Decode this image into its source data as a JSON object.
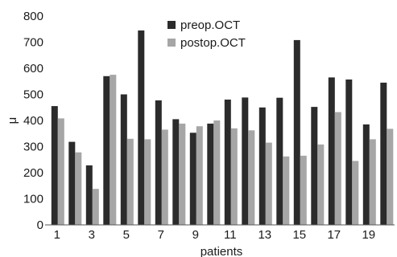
{
  "chart_data": {
    "type": "bar",
    "categories": [
      "1",
      "2",
      "3",
      "4",
      "5",
      "6",
      "7",
      "8",
      "9",
      "10",
      "11",
      "12",
      "13",
      "14",
      "15",
      "16",
      "17",
      "18",
      "19",
      "20"
    ],
    "x_tick_labels": [
      "1",
      "3",
      "5",
      "7",
      "9",
      "11",
      "13",
      "15",
      "17",
      "19"
    ],
    "y_tick_labels": [
      "0",
      "100",
      "200",
      "300",
      "400",
      "500",
      "600",
      "700",
      "800"
    ],
    "series": [
      {
        "name": "preop.OCT",
        "color": "#2b2b2b",
        "values": [
          455,
          318,
          228,
          570,
          500,
          745,
          477,
          405,
          353,
          388,
          480,
          488,
          450,
          487,
          708,
          452,
          565,
          557,
          385,
          545
        ]
      },
      {
        "name": "postop.OCT",
        "color": "#a6a6a6",
        "values": [
          408,
          278,
          138,
          575,
          330,
          328,
          365,
          388,
          378,
          400,
          370,
          362,
          315,
          262,
          265,
          308,
          432,
          245,
          328,
          368
        ]
      }
    ],
    "xlabel": "patients",
    "ylabel": "μ",
    "ylim": [
      0,
      800
    ],
    "legend_position": "top-center",
    "grid": false
  }
}
